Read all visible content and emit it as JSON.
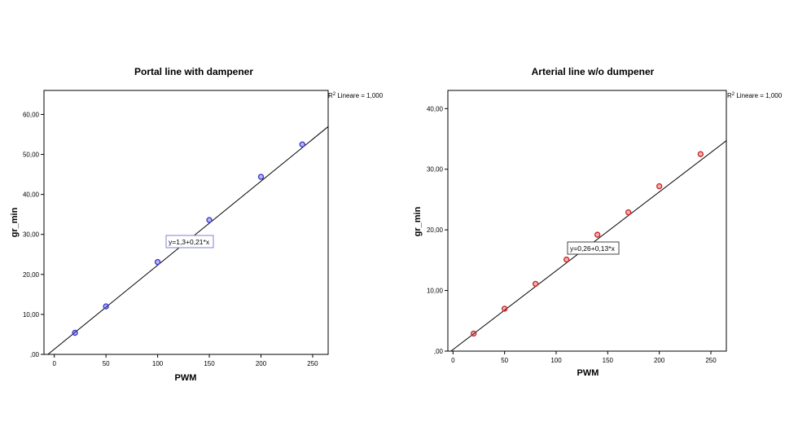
{
  "chart_data": [
    {
      "type": "scatter",
      "title": "Portal line with dampener",
      "xlabel": "PWM",
      "ylabel": "gr_min",
      "fit_label": "y=1,3+0,21*x",
      "r2_prefix": "R",
      "r2_sup": "2",
      "r2_text": " Lineare = 1,000",
      "xlim": [
        -10,
        265
      ],
      "ylim": [
        0,
        66
      ],
      "xticks": [
        0,
        50,
        100,
        150,
        200,
        250
      ],
      "xtick_labels": [
        "0",
        "50",
        "100",
        "150",
        "200",
        "250"
      ],
      "yticks": [
        0,
        10,
        20,
        30,
        40,
        50,
        60
      ],
      "ytick_labels": [
        ",00",
        "10,00",
        "20,00",
        "30,00",
        "40,00",
        "50,00",
        "60,00"
      ],
      "marker_color": "#3b3bd1",
      "fit_box_border": "#8080d8",
      "fit": {
        "intercept": 1.3,
        "slope": 0.21
      },
      "points": [
        {
          "x": 20,
          "y": 5.4
        },
        {
          "x": 50,
          "y": 12.0
        },
        {
          "x": 100,
          "y": 23.1
        },
        {
          "x": 150,
          "y": 33.6
        },
        {
          "x": 200,
          "y": 44.4
        },
        {
          "x": 240,
          "y": 52.5
        }
      ]
    },
    {
      "type": "scatter",
      "title": "Arterial line w/o dumpener",
      "xlabel": "PWM",
      "ylabel": "gr_min",
      "fit_label": "y=0,26+0,13*x",
      "r2_prefix": "R",
      "r2_sup": "2",
      "r2_text": " Lineare = 1,000",
      "xlim": [
        -5,
        265
      ],
      "ylim": [
        0,
        43
      ],
      "xticks": [
        0,
        50,
        100,
        150,
        200,
        250
      ],
      "xtick_labels": [
        "0",
        "50",
        "100",
        "150",
        "200",
        "250"
      ],
      "yticks": [
        0,
        10,
        20,
        30,
        40
      ],
      "ytick_labels": [
        ",00",
        "10,00",
        "20,00",
        "30,00",
        "40,00"
      ],
      "marker_color": "#cc2a2a",
      "fit_box_border": "#444444",
      "fit": {
        "intercept": 0.26,
        "slope": 0.13
      },
      "points": [
        {
          "x": 20,
          "y": 2.9
        },
        {
          "x": 50,
          "y": 7.0
        },
        {
          "x": 80,
          "y": 11.1
        },
        {
          "x": 110,
          "y": 15.1
        },
        {
          "x": 140,
          "y": 19.2
        },
        {
          "x": 170,
          "y": 22.9
        },
        {
          "x": 200,
          "y": 27.2
        },
        {
          "x": 240,
          "y": 32.5
        }
      ]
    }
  ]
}
